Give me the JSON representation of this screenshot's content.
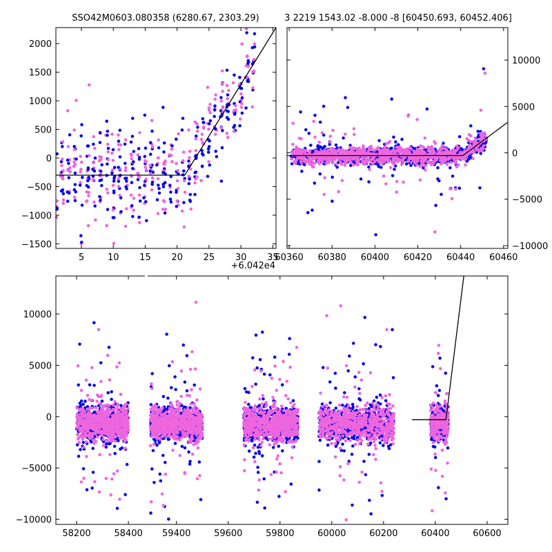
{
  "chart_data": [
    {
      "type": "scatter",
      "panel": "top-left",
      "title": "SSO42M0603.080358 (6280.67, 2303.29)",
      "offset_label": "+6.042e4",
      "xlim": [
        1,
        35.5
      ],
      "ylim": [
        -1580,
        2280
      ],
      "xticks": [
        5,
        10,
        15,
        20,
        25,
        30,
        35
      ],
      "yticks": [
        -1500,
        -1000,
        -500,
        0,
        500,
        1000,
        1500,
        2000
      ],
      "ytick_side": "left",
      "series_colors": [
        "#0a0ae6",
        "#ee66dd"
      ],
      "model_line": {
        "x": [
          1,
          21.2,
          35.5
        ],
        "y": [
          -300,
          -300,
          2280
        ]
      }
    },
    {
      "type": "scatter",
      "panel": "top-right",
      "title": "3 2219 1543.02 -8.000 -8 [60450.693, 60452.406]",
      "xlim": [
        60359,
        60462
      ],
      "ylim": [
        -10300,
        13500
      ],
      "xticks": [
        60360,
        60380,
        60400,
        60420,
        60440,
        60460
      ],
      "yticks": [
        -10000,
        -5000,
        0,
        5000,
        10000
      ],
      "ytick_side": "right",
      "series_colors": [
        "#0a0ae6",
        "#ee66dd"
      ],
      "model_line": {
        "x": [
          60359,
          60441,
          60462
        ],
        "y": [
          -300,
          -300,
          3300
        ]
      }
    },
    {
      "type": "scatter",
      "panel": "bottom",
      "xlim": [
        58120,
        60680
      ],
      "ylim": [
        -10500,
        13700
      ],
      "xticks": [
        58200,
        58400,
        59400,
        59600,
        59800,
        60000,
        60200,
        60400,
        60600
      ],
      "yticks": [
        -10000,
        -5000,
        0,
        5000,
        10000
      ],
      "ytick_side": "left",
      "axis_break": {
        "after": 58440,
        "before": 59265
      },
      "series_colors": [
        "#0a0ae6",
        "#ee66dd"
      ],
      "clusters": [
        {
          "x": [
            58200,
            58400
          ]
        },
        {
          "x": [
            59300,
            59500
          ]
        },
        {
          "x": [
            59660,
            59870
          ]
        },
        {
          "x": [
            59950,
            60240
          ]
        },
        {
          "x": [
            60380,
            60450
          ]
        }
      ],
      "model_line": {
        "x": [
          60310,
          60441,
          60510
        ],
        "y": [
          -300,
          -300,
          13700
        ]
      }
    }
  ]
}
